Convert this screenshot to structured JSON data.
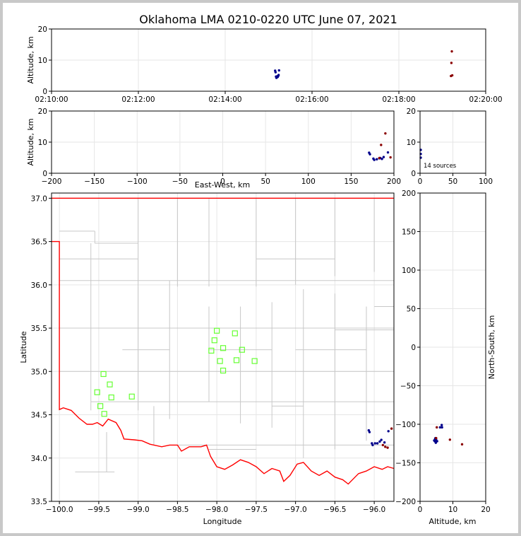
{
  "chart_data": {
    "type": "scatter",
    "title": "Oklahoma LMA 0210-0220 UTC June 07, 2021",
    "source_count_label": "14 sources",
    "colors": {
      "grid": "#e6e6e6",
      "county_line": "#c8c8c8",
      "state_line": "#ff0000",
      "station": "#66ff33",
      "early_source": "#00008b",
      "late_source": "#8b0000"
    },
    "panels": {
      "time_altitude": {
        "ylabel": "Altitude, km",
        "ylim": [
          0,
          20
        ],
        "yticks": [
          "0",
          "10",
          "20"
        ],
        "xlim_minutes": [
          0,
          10
        ],
        "xticks": [
          {
            "minute": 0,
            "label": "02:10:00"
          },
          {
            "minute": 2,
            "label": "02:12:00"
          },
          {
            "minute": 4,
            "label": "02:14:00"
          },
          {
            "minute": 6,
            "label": "02:16:00"
          },
          {
            "minute": 8,
            "label": "02:18:00"
          },
          {
            "minute": 10,
            "label": "02:20:00"
          }
        ]
      },
      "ew_altitude": {
        "xlabel": "East-West, km",
        "ylabel": "Altitude, km",
        "xlim": [
          -200,
          200
        ],
        "ylim": [
          0,
          20
        ],
        "xticks": [
          "−200",
          "−150",
          "−100",
          "−50",
          "0",
          "50",
          "100",
          "150",
          "200"
        ],
        "yticks": [
          "0",
          "10",
          "20"
        ]
      },
      "histogram": {
        "xlim": [
          0,
          100
        ],
        "ylim": [
          0,
          20
        ],
        "xticks": [
          "0",
          "50",
          "100"
        ],
        "yticks": [
          "0",
          "10",
          "20"
        ]
      },
      "plan": {
        "xlabel": "Longitude",
        "ylabel": "Latitude",
        "xlim": [
          -100.1,
          -95.75
        ],
        "ylim": [
          33.5,
          37.06
        ],
        "xticks": [
          "−100.0",
          "−99.5",
          "−99.0",
          "−98.5",
          "−98.0",
          "−97.5",
          "−97.0",
          "−96.5",
          "−96.0"
        ],
        "yticks": [
          "33.5",
          "34.0",
          "34.5",
          "35.0",
          "35.5",
          "36.0",
          "36.5",
          "37.0"
        ]
      },
      "ns_altitude": {
        "xlabel": "Altitude, km",
        "ylabel": "North-South, km",
        "xlim": [
          0,
          20
        ],
        "ylim": [
          -200,
          200
        ],
        "xticks": [
          "0",
          "10",
          "20"
        ],
        "yticks": [
          "−200",
          "−150",
          "−100",
          "−50",
          "0",
          "50",
          "100",
          "150",
          "200"
        ]
      }
    },
    "stations": [
      {
        "lon": -99.44,
        "lat": 34.97
      },
      {
        "lon": -99.36,
        "lat": 34.85
      },
      {
        "lon": -99.52,
        "lat": 34.76
      },
      {
        "lon": -99.34,
        "lat": 34.7
      },
      {
        "lon": -99.48,
        "lat": 34.6
      },
      {
        "lon": -99.43,
        "lat": 34.51
      },
      {
        "lon": -99.08,
        "lat": 34.71
      },
      {
        "lon": -98.0,
        "lat": 35.47
      },
      {
        "lon": -98.03,
        "lat": 35.36
      },
      {
        "lon": -98.07,
        "lat": 35.24
      },
      {
        "lon": -97.92,
        "lat": 35.27
      },
      {
        "lon": -97.96,
        "lat": 35.12
      },
      {
        "lon": -97.92,
        "lat": 35.01
      },
      {
        "lon": -97.77,
        "lat": 35.44
      },
      {
        "lon": -97.68,
        "lat": 35.25
      },
      {
        "lon": -97.75,
        "lat": 35.13
      },
      {
        "lon": -97.52,
        "lat": 35.12
      }
    ],
    "sources": [
      {
        "t": 5.15,
        "ew": 171,
        "ns": -101,
        "lon": -96.07,
        "lat": 34.32,
        "alt": 6.6,
        "late": false
      },
      {
        "t": 5.16,
        "ew": 172,
        "ns": -104,
        "lon": -96.06,
        "lat": 34.3,
        "alt": 6.1,
        "late": false
      },
      {
        "t": 5.17,
        "ew": 176,
        "ns": -118,
        "lon": -96.03,
        "lat": 34.17,
        "alt": 4.7,
        "late": false
      },
      {
        "t": 5.18,
        "ew": 177,
        "ns": -121,
        "lon": -96.02,
        "lat": 34.15,
        "alt": 4.3,
        "late": false
      },
      {
        "t": 5.19,
        "ew": 180,
        "ns": -122,
        "lon": -95.99,
        "lat": 34.17,
        "alt": 4.5,
        "late": false
      },
      {
        "t": 5.2,
        "ew": 183,
        "ns": -124,
        "lon": -95.96,
        "lat": 34.17,
        "alt": 4.8,
        "late": false
      },
      {
        "t": 5.21,
        "ew": 186,
        "ns": -119,
        "lon": -95.93,
        "lat": 34.19,
        "alt": 4.6,
        "late": false
      },
      {
        "t": 5.22,
        "ew": 184,
        "ns": -120,
        "lon": -95.91,
        "lat": 34.21,
        "alt": 4.9,
        "late": false
      },
      {
        "t": 5.23,
        "ew": 188,
        "ns": -122,
        "lon": -95.87,
        "lat": 34.18,
        "alt": 5.2,
        "late": false
      },
      {
        "t": 5.24,
        "ew": 193,
        "ns": -104,
        "lon": -95.82,
        "lat": 34.31,
        "alt": 6.7,
        "late": false
      },
      {
        "t": 9.2,
        "ew": 183,
        "ns": -118,
        "lon": -95.89,
        "lat": 34.15,
        "alt": 4.9,
        "late": true
      },
      {
        "t": 9.21,
        "ew": 185,
        "ns": -120,
        "lon": -95.86,
        "lat": 34.13,
        "alt": 9.1,
        "late": true
      },
      {
        "t": 9.22,
        "ew": 190,
        "ns": -126,
        "lon": -95.83,
        "lat": 34.12,
        "alt": 12.8,
        "late": true
      },
      {
        "t": 9.23,
        "ew": 196,
        "ns": -104,
        "lon": -95.78,
        "lat": 34.34,
        "alt": 5.1,
        "late": true
      }
    ]
  }
}
